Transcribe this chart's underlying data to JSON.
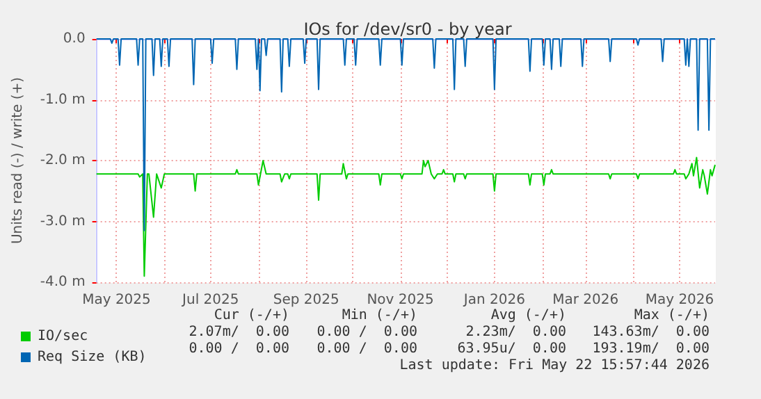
{
  "chart_data": {
    "type": "line",
    "title": "IOs for /dev/sr0 - by year",
    "ylabel": "Units read (-) / write (+)",
    "xlim": [
      "2025-04-18",
      "2026-05-24"
    ],
    "xticks": [
      {
        "value": "2025-05-01",
        "label": "May 2025"
      },
      {
        "value": "2025-06-01",
        "label": null
      },
      {
        "value": "2025-07-01",
        "label": "Jul 2025"
      },
      {
        "value": "2025-08-01",
        "label": null
      },
      {
        "value": "2025-09-01",
        "label": "Sep 2025"
      },
      {
        "value": "2025-10-01",
        "label": null
      },
      {
        "value": "2025-11-01",
        "label": "Nov 2025"
      },
      {
        "value": "2025-12-01",
        "label": null
      },
      {
        "value": "2026-01-01",
        "label": "Jan 2026"
      },
      {
        "value": "2026-02-01",
        "label": null
      },
      {
        "value": "2026-03-01",
        "label": "Mar 2026"
      },
      {
        "value": "2026-04-01",
        "label": null
      },
      {
        "value": "2026-05-01",
        "label": "May 2026"
      }
    ],
    "ylim": [
      -4,
      0
    ],
    "yticks": [
      {
        "value": -4,
        "label": "-4.0 m"
      },
      {
        "value": -3,
        "label": "-3.0 m"
      },
      {
        "value": -2,
        "label": "-2.0 m"
      },
      {
        "value": -1,
        "label": "-1.0 m"
      },
      {
        "value": 0,
        "label": "0.0"
      }
    ],
    "grid": true,
    "legend": "bottom left",
    "marker": "none",
    "line_style": "solid",
    "series": [
      {
        "name": "IO/sec",
        "color": "#00cc00",
        "x": [
          "2025-04-18",
          "2025-05-15",
          "2025-05-16",
          "2025-05-18",
          "2025-05-19",
          "2025-05-21",
          "2025-05-22",
          "2025-05-25",
          "2025-05-27",
          "2025-05-30",
          "2025-06-01",
          "2025-06-20",
          "2025-06-21",
          "2025-06-22",
          "2025-07-17",
          "2025-07-18",
          "2025-07-19",
          "2025-07-31",
          "2025-08-01",
          "2025-08-04",
          "2025-08-06",
          "2025-08-15",
          "2025-08-16",
          "2025-08-18",
          "2025-08-20",
          "2025-08-21",
          "2025-08-22",
          "2025-09-08",
          "2025-09-09",
          "2025-09-10",
          "2025-09-24",
          "2025-09-25",
          "2025-09-27",
          "2025-09-28",
          "2025-10-18",
          "2025-10-19",
          "2025-10-20",
          "2025-11-01",
          "2025-11-02",
          "2025-11-03",
          "2025-11-15",
          "2025-11-16",
          "2025-11-17",
          "2025-11-19",
          "2025-11-21",
          "2025-11-23",
          "2025-11-25",
          "2025-11-28",
          "2025-11-29",
          "2025-11-30",
          "2025-12-05",
          "2025-12-06",
          "2025-12-07",
          "2025-12-12",
          "2025-12-13",
          "2025-12-14",
          "2025-12-31",
          "2026-01-01",
          "2026-01-02",
          "2026-01-23",
          "2026-01-24",
          "2026-01-25",
          "2026-02-01",
          "2026-02-02",
          "2026-02-03",
          "2026-02-06",
          "2026-02-07",
          "2026-02-08",
          "2026-03-16",
          "2026-03-17",
          "2026-03-18",
          "2026-04-03",
          "2026-04-04",
          "2026-04-05",
          "2026-04-27",
          "2026-04-28",
          "2026-04-29",
          "2026-05-04",
          "2026-05-05",
          "2026-05-07",
          "2026-05-09",
          "2026-05-10",
          "2026-05-12",
          "2026-05-14",
          "2026-05-16",
          "2026-05-17",
          "2026-05-19",
          "2026-05-21",
          "2026-05-22",
          "2026-05-24"
        ],
        "values": [
          -2.22,
          -2.22,
          -2.27,
          -2.22,
          -3.9,
          -2.22,
          -2.22,
          -2.93,
          -2.22,
          -2.45,
          -2.22,
          -2.22,
          -2.5,
          -2.22,
          -2.22,
          -2.15,
          -2.22,
          -2.22,
          -2.4,
          -2.0,
          -2.22,
          -2.22,
          -2.35,
          -2.22,
          -2.22,
          -2.3,
          -2.22,
          -2.22,
          -2.65,
          -2.22,
          -2.22,
          -2.05,
          -2.3,
          -2.22,
          -2.22,
          -2.4,
          -2.22,
          -2.22,
          -2.3,
          -2.22,
          -2.22,
          -2.0,
          -2.1,
          -2.0,
          -2.22,
          -2.3,
          -2.22,
          -2.22,
          -2.15,
          -2.22,
          -2.22,
          -2.35,
          -2.22,
          -2.22,
          -2.3,
          -2.22,
          -2.22,
          -2.5,
          -2.22,
          -2.22,
          -2.4,
          -2.22,
          -2.22,
          -2.4,
          -2.22,
          -2.22,
          -2.15,
          -2.22,
          -2.22,
          -2.3,
          -2.22,
          -2.22,
          -2.3,
          -2.22,
          -2.22,
          -2.15,
          -2.22,
          -2.22,
          -2.3,
          -2.22,
          -2.05,
          -2.25,
          -1.95,
          -2.45,
          -2.15,
          -2.25,
          -2.55,
          -2.15,
          -2.25,
          -2.07
        ]
      },
      {
        "name": "Req Size (KB)",
        "color": "#0066b3",
        "x": [
          "2025-04-18",
          "2025-04-27",
          "2025-04-28",
          "2025-04-29",
          "2025-05-02",
          "2025-05-03",
          "2025-05-04",
          "2025-05-14",
          "2025-05-15",
          "2025-05-16",
          "2025-05-18",
          "2025-05-19",
          "2025-05-20",
          "2025-05-24",
          "2025-05-25",
          "2025-05-26",
          "2025-05-29",
          "2025-05-30",
          "2025-05-31",
          "2025-06-03",
          "2025-06-04",
          "2025-06-05",
          "2025-06-19",
          "2025-06-20",
          "2025-06-21",
          "2025-07-01",
          "2025-07-02",
          "2025-07-03",
          "2025-07-17",
          "2025-07-18",
          "2025-07-19",
          "2025-07-30",
          "2025-07-31",
          "2025-08-01",
          "2025-08-02",
          "2025-08-03",
          "2025-08-05",
          "2025-08-06",
          "2025-08-07",
          "2025-08-15",
          "2025-08-16",
          "2025-08-17",
          "2025-08-20",
          "2025-08-21",
          "2025-08-22",
          "2025-08-30",
          "2025-08-31",
          "2025-09-01",
          "2025-09-08",
          "2025-09-09",
          "2025-09-10",
          "2025-09-25",
          "2025-09-26",
          "2025-09-27",
          "2025-10-02",
          "2025-10-03",
          "2025-10-04",
          "2025-10-18",
          "2025-10-19",
          "2025-10-20",
          "2025-11-01",
          "2025-11-02",
          "2025-11-03",
          "2025-11-22",
          "2025-11-23",
          "2025-11-24",
          "2025-12-05",
          "2025-12-06",
          "2025-12-07",
          "2025-12-12",
          "2025-12-13",
          "2025-12-14",
          "2025-12-31",
          "2026-01-01",
          "2026-01-02",
          "2026-01-23",
          "2026-01-24",
          "2026-01-25",
          "2026-02-01",
          "2026-02-02",
          "2026-02-03",
          "2026-02-06",
          "2026-02-07",
          "2026-02-08",
          "2026-02-12",
          "2026-02-13",
          "2026-02-14",
          "2026-02-26",
          "2026-02-27",
          "2026-02-28",
          "2026-03-16",
          "2026-03-17",
          "2026-03-18",
          "2026-04-03",
          "2026-04-04",
          "2026-04-05",
          "2026-04-19",
          "2026-04-20",
          "2026-04-21",
          "2026-05-04",
          "2026-05-05",
          "2026-05-06",
          "2026-05-07",
          "2026-05-08",
          "2026-05-12",
          "2026-05-13",
          "2026-05-14",
          "2026-05-19",
          "2026-05-20",
          "2026-05-21",
          "2026-05-24"
        ],
        "values": [
          0,
          0,
          -0.07,
          0,
          0,
          -0.43,
          0,
          0,
          -0.43,
          0,
          0,
          -3.15,
          0,
          0,
          -0.6,
          0,
          0,
          -0.45,
          0,
          0,
          -0.45,
          0,
          0,
          -0.75,
          0,
          0,
          -0.4,
          0,
          0,
          -0.5,
          0,
          0,
          -0.5,
          0,
          -0.85,
          0,
          0,
          -0.27,
          0,
          0,
          -0.87,
          0,
          0,
          -0.45,
          0,
          0,
          -0.4,
          0,
          0,
          -0.83,
          0,
          0,
          -0.43,
          0,
          0,
          -0.43,
          0,
          0,
          -0.43,
          0,
          0,
          -0.43,
          0,
          0,
          -0.48,
          0,
          0,
          -0.83,
          0,
          0,
          -0.45,
          0,
          0,
          -0.83,
          0,
          0,
          -0.53,
          0,
          0,
          -0.43,
          0,
          0,
          -0.5,
          0,
          0,
          -0.45,
          0,
          0,
          -0.45,
          0,
          0,
          -0.37,
          0,
          0,
          -0.1,
          0,
          0,
          -0.37,
          0,
          0,
          -0.43,
          0,
          -0.45,
          0,
          0,
          -1.5,
          0,
          0,
          -1.5,
          0,
          0
        ]
      }
    ],
    "annotations": [
      "Cur (-/+)",
      "Min (-/+)",
      "Avg (-/+)",
      "Max (-/+)",
      "2.07m/  0.00",
      "0.00 /  0.00",
      "2.23m/  0.00",
      "143.63m/  0.00",
      "0.00 /  0.00",
      "0.00 /  0.00",
      "63.95u/  0.00",
      "193.19m/  0.00",
      "Last update: Fri May 22 15:57:44 2026"
    ]
  }
}
